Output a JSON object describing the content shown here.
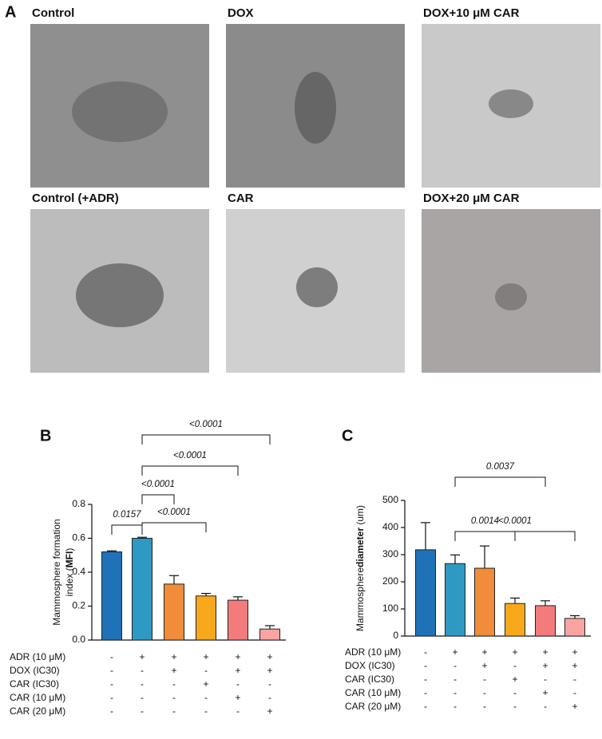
{
  "panel_a": {
    "label": "A",
    "captions": [
      "Control",
      "DOX",
      "DOX+10 μM CAR",
      "Control (+ADR)",
      "CAR",
      "DOX+20 μM CAR"
    ]
  },
  "chart_data": [
    {
      "type": "bar",
      "panel_label": "B",
      "ylabel": {
        "line1": "Mammosphere formation",
        "line2_pre": "index (",
        "line2_bold": "MFI",
        "line2_post": ")"
      },
      "values": [
        0.52,
        0.6,
        0.33,
        0.26,
        0.235,
        0.065
      ],
      "errors": [
        0.006,
        0.006,
        0.05,
        0.015,
        0.02,
        0.02
      ],
      "colors": [
        "#1f72b8",
        "#2e9ac4",
        "#f08c3a",
        "#f7a81b",
        "#f47b7c",
        "#f9a3a3"
      ],
      "ylim": [
        0,
        0.8
      ],
      "yticks": [
        {
          "value": 0,
          "label": "0.0"
        },
        0.2,
        0.4,
        0.6,
        0.8
      ],
      "comparisons": [
        {
          "bars": [
            0,
            1
          ],
          "label": "0.0157"
        },
        {
          "bars": [
            1,
            2
          ],
          "label": "<0.0001"
        },
        {
          "bars": [
            1,
            3
          ],
          "label": "<0.0001"
        },
        {
          "bars": [
            1,
            4
          ],
          "label": "<0.0001"
        },
        {
          "bars": [
            1,
            5
          ],
          "label": "<0.0001"
        }
      ],
      "conditions": [
        {
          "label": "ADR (10 μM)",
          "signs": [
            "-",
            "+",
            "+",
            "+",
            "+",
            "+"
          ]
        },
        {
          "label": "DOX (IC30)",
          "signs": [
            "-",
            "-",
            "+",
            "-",
            "+",
            "+"
          ]
        },
        {
          "label": "CAR (IC30)",
          "signs": [
            "-",
            "-",
            "-",
            "+",
            "-",
            "-"
          ]
        },
        {
          "label": "CAR (10 μM)",
          "signs": [
            "-",
            "-",
            "-",
            "-",
            "+",
            "-"
          ]
        },
        {
          "label": "CAR (20 μM)",
          "signs": [
            "-",
            "-",
            "-",
            "-",
            "-",
            "+"
          ]
        }
      ]
    },
    {
      "type": "bar",
      "panel_label": "C",
      "ylabel": {
        "line1": "Mammosphere",
        "line2_pre": "",
        "line2_bold": "diameter",
        "line2_post": " (um)"
      },
      "values": [
        318,
        267,
        250,
        120,
        112,
        65
      ],
      "errors": [
        100,
        32,
        82,
        20,
        18,
        10
      ],
      "colors": [
        "#1f72b8",
        "#2e9ac4",
        "#f08c3a",
        "#f7a81b",
        "#f47b7c",
        "#f9a3a3"
      ],
      "ylim": [
        0,
        500
      ],
      "yticks": [
        0,
        100,
        200,
        300,
        400,
        500
      ],
      "comparisons": [
        {
          "bars": [
            1,
            3
          ],
          "label": "0.0014"
        },
        {
          "bars": [
            1,
            4
          ],
          "label": "0.0037"
        },
        {
          "bars": [
            1,
            5
          ],
          "label": "<0.0001"
        }
      ],
      "conditions": [
        {
          "label": "ADR (10 μM)",
          "signs": [
            "-",
            "+",
            "+",
            "+",
            "+",
            "+"
          ]
        },
        {
          "label": "DOX (IC30)",
          "signs": [
            "-",
            "-",
            "+",
            "-",
            "+",
            "+"
          ]
        },
        {
          "label": "CAR (IC30)",
          "signs": [
            "-",
            "-",
            "-",
            "+",
            "-",
            "-"
          ]
        },
        {
          "label": "CAR (10 μM)",
          "signs": [
            "-",
            "-",
            "-",
            "-",
            "+",
            "-"
          ]
        },
        {
          "label": "CAR (20 μM)",
          "signs": [
            "-",
            "-",
            "-",
            "-",
            "-",
            "+"
          ]
        }
      ]
    }
  ]
}
